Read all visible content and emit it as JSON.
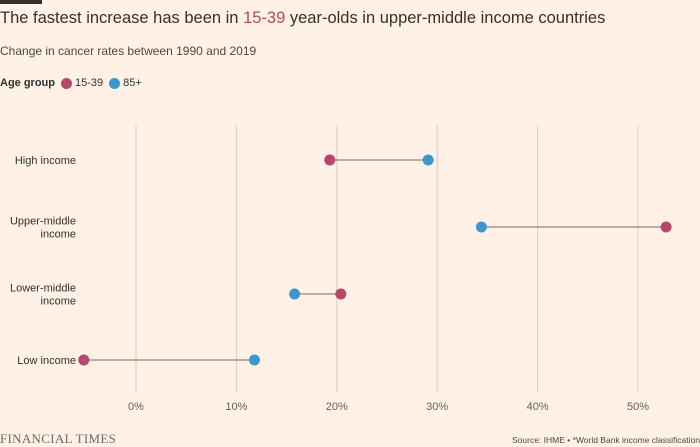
{
  "title": {
    "prefix": "The fastest increase has been in ",
    "highlight": "15-39",
    "suffix": " year-olds in upper-middle income countries"
  },
  "subtitle": "Change in cancer rates between 1990 and 2019",
  "legend": {
    "title": "Age group",
    "items": [
      {
        "label": "15-39",
        "color": "#B5476A"
      },
      {
        "label": "85+",
        "color": "#3B97CC"
      }
    ]
  },
  "chart_data": {
    "type": "dumbbell",
    "categories": [
      {
        "lines": [
          "High income"
        ]
      },
      {
        "lines": [
          "Upper-middle",
          "income"
        ]
      },
      {
        "lines": [
          "Lower-middle",
          "income"
        ]
      },
      {
        "lines": [
          "Low income"
        ]
      }
    ],
    "series": [
      {
        "name": "15-39",
        "color": "#B5476A",
        "values": [
          19.3,
          52.8,
          20.4,
          -5.2
        ]
      },
      {
        "name": "85+",
        "color": "#3B97CC",
        "values": [
          29.1,
          34.4,
          15.8,
          11.8
        ]
      }
    ],
    "xticks": [
      0,
      10,
      20,
      30,
      40,
      50
    ],
    "xtick_labels": [
      "0%",
      "10%",
      "20%",
      "30%",
      "40%",
      "50%"
    ],
    "xlim": [
      -6,
      55
    ],
    "grid": "vertical"
  },
  "footer": {
    "logo": "FINANCIAL TIMES",
    "source": "Source: IHME • *World Bank income classification"
  }
}
